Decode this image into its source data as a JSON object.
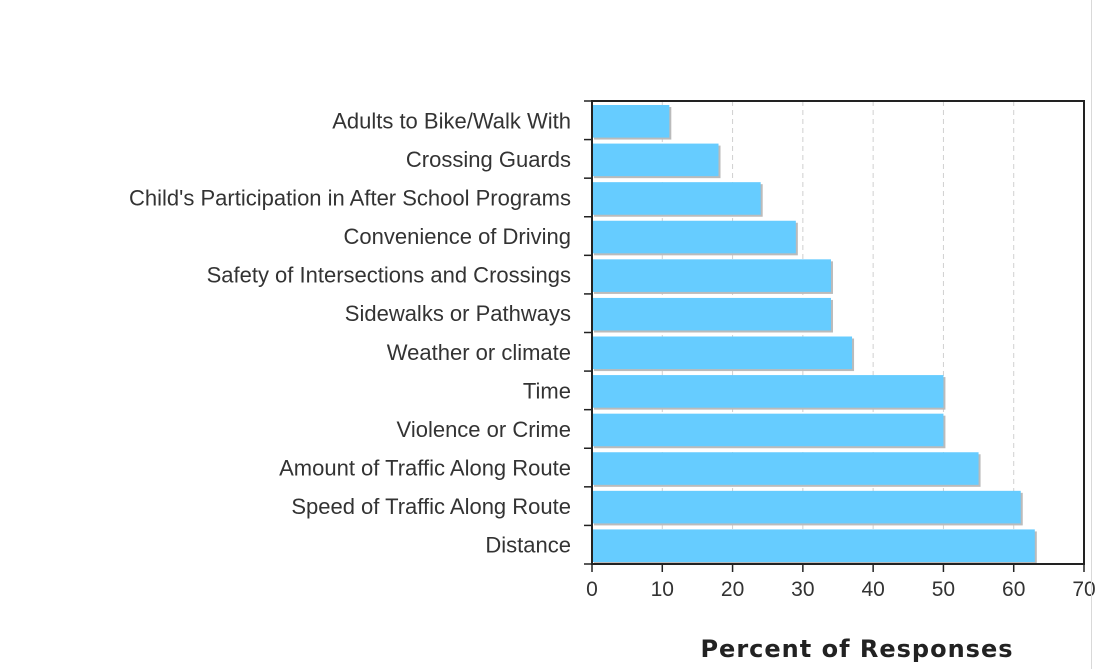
{
  "chart_data": {
    "type": "bar",
    "orientation": "horizontal",
    "categories": [
      "Adults to Bike/Walk With",
      "Crossing Guards",
      "Child's Participation in After School Programs",
      "Convenience of Driving",
      "Safety of Intersections and Crossings",
      "Sidewalks or Pathways",
      "Weather or climate",
      "Time",
      "Violence or Crime",
      "Amount of Traffic Along Route",
      "Speed of Traffic Along Route",
      "Distance"
    ],
    "values": [
      11,
      18,
      24,
      29,
      34,
      34,
      37,
      50,
      50,
      55,
      61,
      63
    ],
    "xlabel": "Percent of Responses",
    "xlim": [
      0,
      70
    ],
    "xticks": [
      "0",
      "10",
      "20",
      "30",
      "40",
      "50",
      "60",
      "70"
    ],
    "grid": "vertical dashed",
    "bar_color": "#66ccff",
    "shadow_color": "#bbbbbb"
  }
}
